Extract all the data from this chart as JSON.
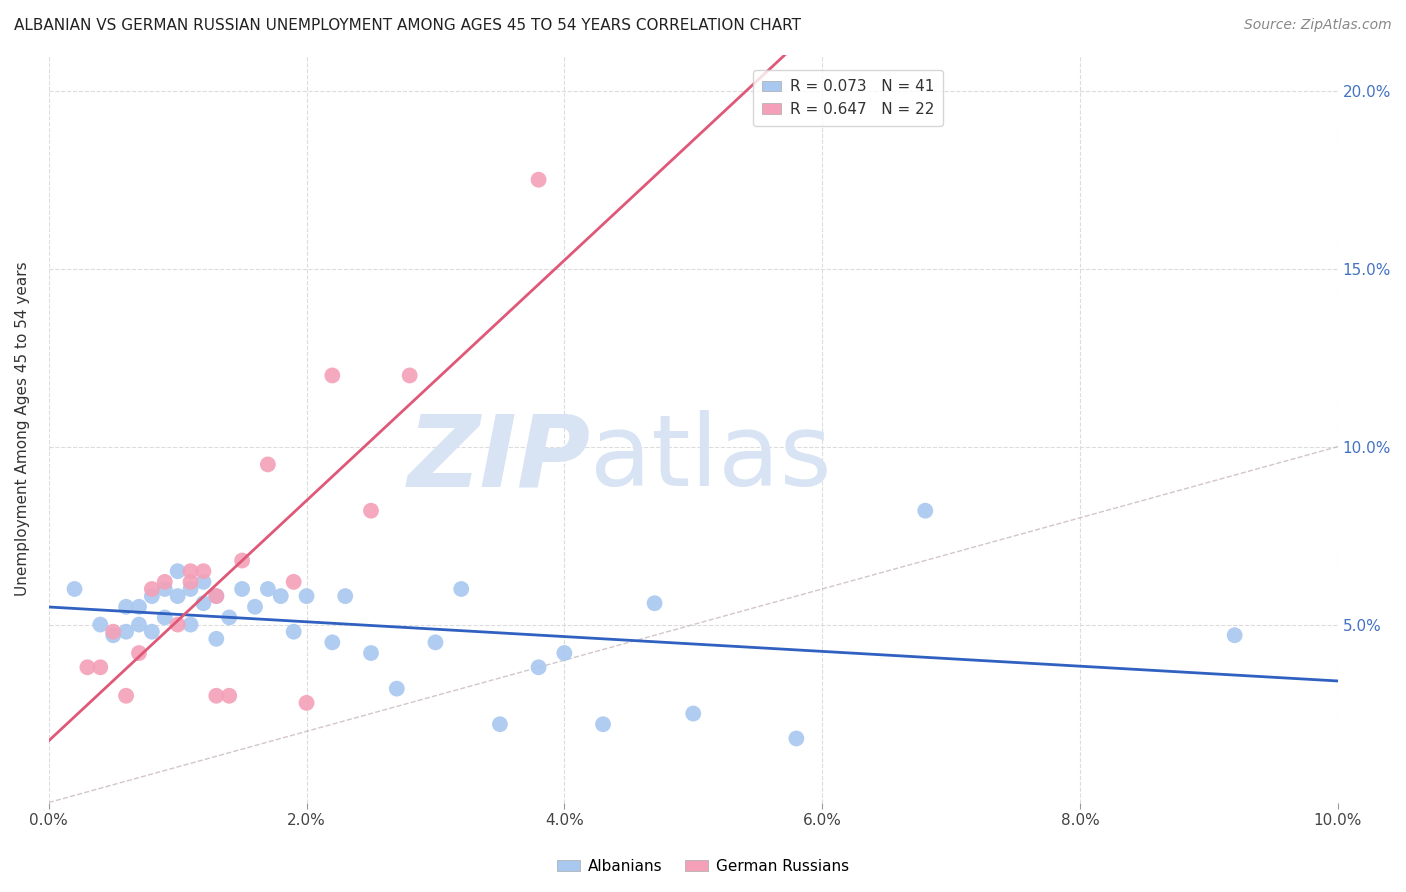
{
  "title": "ALBANIAN VS GERMAN RUSSIAN UNEMPLOYMENT AMONG AGES 45 TO 54 YEARS CORRELATION CHART",
  "source": "Source: ZipAtlas.com",
  "ylabel": "Unemployment Among Ages 45 to 54 years",
  "xlim": [
    0.0,
    0.1
  ],
  "ylim": [
    0.0,
    0.21
  ],
  "xticks": [
    0.0,
    0.02,
    0.04,
    0.06,
    0.08,
    0.1
  ],
  "yticks": [
    0.0,
    0.05,
    0.1,
    0.15,
    0.2
  ],
  "xticklabels": [
    "0.0%",
    "2.0%",
    "4.0%",
    "6.0%",
    "8.0%",
    "10.0%"
  ],
  "yticklabels_right": [
    "",
    "5.0%",
    "10.0%",
    "15.0%",
    "20.0%"
  ],
  "legend_1_label": "R = 0.073   N = 41",
  "legend_2_label": "R = 0.647   N = 22",
  "legend_color_1": "#A8C8F0",
  "legend_color_2": "#F4A0B8",
  "scatter_color_1": "#A8C8F0",
  "scatter_color_2": "#F4A0B8",
  "line_color_1": "#3060C0",
  "line_color_2": "#E05878",
  "diag_line_color": "#C8B8BC",
  "watermark_color": "#D8E4F4",
  "albanians_x": [
    0.002,
    0.004,
    0.005,
    0.006,
    0.006,
    0.007,
    0.007,
    0.008,
    0.008,
    0.009,
    0.009,
    0.01,
    0.01,
    0.011,
    0.011,
    0.012,
    0.012,
    0.013,
    0.013,
    0.014,
    0.015,
    0.016,
    0.017,
    0.018,
    0.019,
    0.02,
    0.022,
    0.023,
    0.025,
    0.027,
    0.03,
    0.032,
    0.035,
    0.038,
    0.04,
    0.043,
    0.047,
    0.05,
    0.058,
    0.068,
    0.092
  ],
  "albanians_y": [
    0.06,
    0.05,
    0.047,
    0.055,
    0.048,
    0.055,
    0.05,
    0.058,
    0.048,
    0.06,
    0.052,
    0.065,
    0.058,
    0.06,
    0.05,
    0.062,
    0.056,
    0.058,
    0.046,
    0.052,
    0.06,
    0.055,
    0.06,
    0.058,
    0.048,
    0.058,
    0.045,
    0.058,
    0.042,
    0.032,
    0.045,
    0.06,
    0.022,
    0.038,
    0.042,
    0.022,
    0.056,
    0.025,
    0.018,
    0.082,
    0.047
  ],
  "german_russians_x": [
    0.003,
    0.004,
    0.005,
    0.006,
    0.007,
    0.008,
    0.009,
    0.01,
    0.011,
    0.011,
    0.012,
    0.013,
    0.013,
    0.014,
    0.015,
    0.017,
    0.019,
    0.02,
    0.022,
    0.025,
    0.028,
    0.038
  ],
  "german_russians_y": [
    0.038,
    0.038,
    0.048,
    0.03,
    0.042,
    0.06,
    0.062,
    0.05,
    0.062,
    0.065,
    0.065,
    0.058,
    0.03,
    0.03,
    0.068,
    0.095,
    0.062,
    0.028,
    0.12,
    0.082,
    0.12,
    0.175
  ]
}
